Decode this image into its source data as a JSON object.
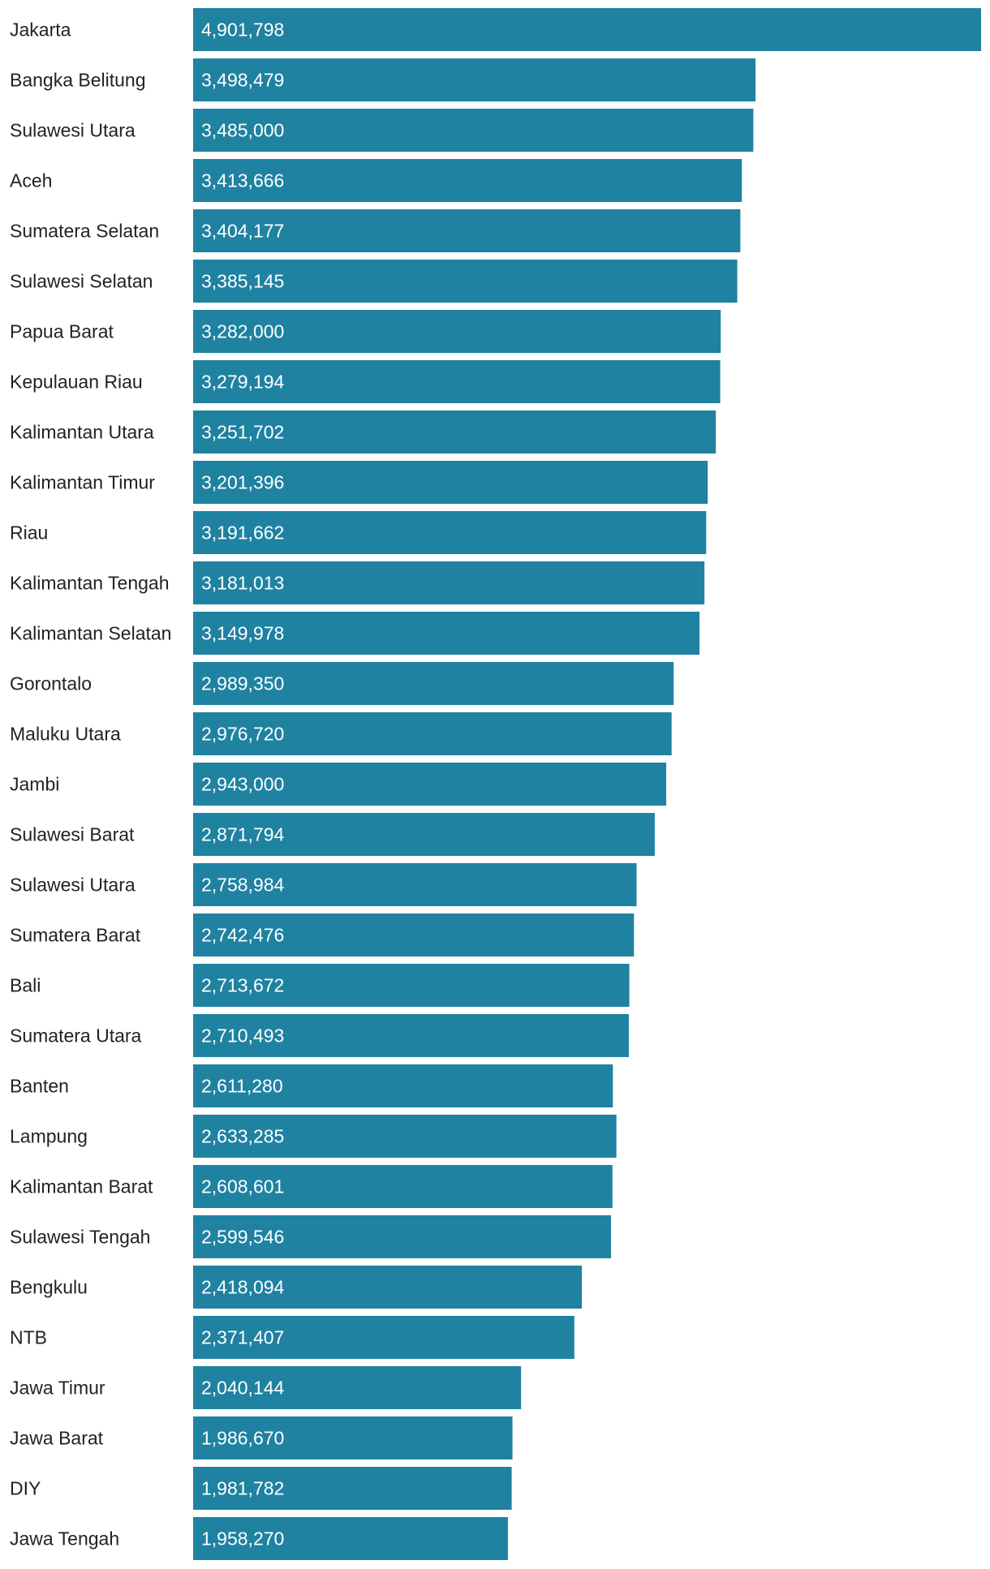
{
  "colors": {
    "bar": "#1f82a1",
    "label": "#222222",
    "value_text": "#ffffff",
    "background": "#ffffff"
  },
  "chart_data": {
    "type": "bar",
    "orientation": "horizontal",
    "title": "",
    "xlabel": "",
    "ylabel": "",
    "grid": false,
    "xlim": [
      0,
      4901798
    ],
    "categories": [
      "Jakarta",
      "Bangka Belitung",
      "Sulawesi Utara",
      "Aceh",
      "Sumatera Selatan",
      "Sulawesi Selatan",
      "Papua Barat",
      "Kepulauan Riau",
      "Kalimantan Utara",
      "Kalimantan Timur",
      "Riau",
      "Kalimantan Tengah",
      "Kalimantan Selatan",
      "Gorontalo",
      "Maluku Utara",
      "Jambi",
      "Sulawesi Barat",
      "Sulawesi Utara",
      "Sumatera Barat",
      "Bali",
      "Sumatera Utara",
      "Banten",
      "Lampung",
      "Kalimantan Barat",
      "Sulawesi Tengah",
      "Bengkulu",
      "NTB",
      "Jawa Timur",
      "Jawa Barat",
      "DIY",
      "Jawa Tengah"
    ],
    "values": [
      4901798,
      3498479,
      3485000,
      3413666,
      3404177,
      3385145,
      3282000,
      3279194,
      3251702,
      3201396,
      3191662,
      3181013,
      3149978,
      2989350,
      2976720,
      2943000,
      2871794,
      2758984,
      2742476,
      2713672,
      2710493,
      2611280,
      2633285,
      2608601,
      2599546,
      2418094,
      2371407,
      2040144,
      1986670,
      1981782,
      1958270
    ],
    "value_labels": [
      "4,901,798",
      "3,498,479",
      "3,485,000",
      "3,413,666",
      "3,404,177",
      "3,385,145",
      "3,282,000",
      "3,279,194",
      "3,251,702",
      "3,201,396",
      "3,191,662",
      "3,181,013",
      "3,149,978",
      "2,989,350",
      "2,976,720",
      "2,943,000",
      "2,871,794",
      "2,758,984",
      "2,742,476",
      "2,713,672",
      "2,710,493",
      "2,611,280",
      "2,633,285",
      "2,608,601",
      "2,599,546",
      "2,418,094",
      "2,371,407",
      "2,040,144",
      "1,986,670",
      "1,981,782",
      "1,958,270"
    ]
  }
}
